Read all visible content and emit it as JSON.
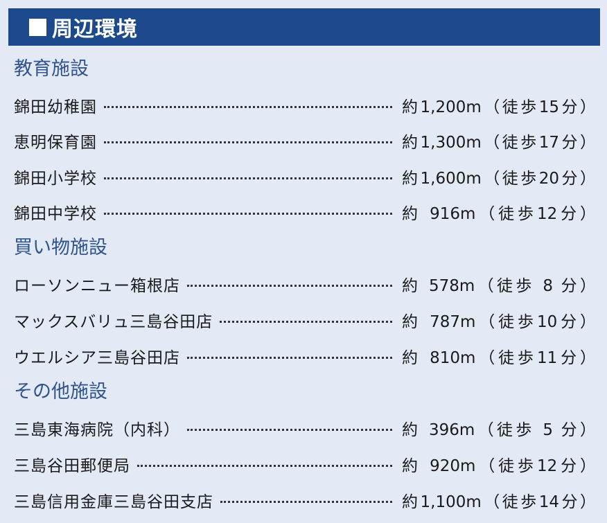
{
  "header": {
    "title": "周辺環境"
  },
  "sections": [
    {
      "category": "教育施設",
      "items": [
        {
          "name": "錦田幼稚園",
          "distance": "約1,200m（徒歩15分）"
        },
        {
          "name": "恵明保育園",
          "distance": "約1,300m（徒歩17分）"
        },
        {
          "name": "錦田小学校",
          "distance": "約1,600m（徒歩20分）"
        },
        {
          "name": "錦田中学校",
          "distance": "約 916m（徒歩12分）"
        }
      ]
    },
    {
      "category": "買い物施設",
      "items": [
        {
          "name": "ローソンニュー箱根店",
          "distance": "約 578m（徒歩 8 分）"
        },
        {
          "name": "マックスバリュ三島谷田店",
          "distance": "約 787m（徒歩10分）"
        },
        {
          "name": "ウエルシア三島谷田店",
          "distance": "約 810m（徒歩11分）"
        }
      ]
    },
    {
      "category": "その他施設",
      "items": [
        {
          "name": "三島東海病院（内科）",
          "distance": "約 396m（徒歩 5 分）"
        },
        {
          "name": "三島谷田郵便局",
          "distance": "約 920m（徒歩12分）"
        },
        {
          "name": "三島信用金庫三島谷田支店",
          "distance": "約1,100m（徒歩14分）"
        }
      ]
    }
  ],
  "colors": {
    "header_bg": "#1c4a8d",
    "background": "#e3e9f5",
    "category_text": "#2f548f"
  }
}
